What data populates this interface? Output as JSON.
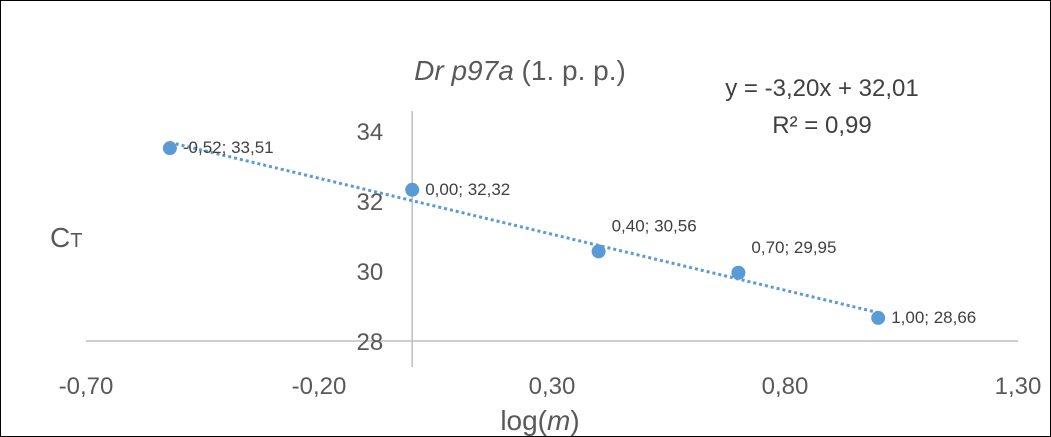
{
  "chart_data": {
    "type": "scatter",
    "title_italic": "Dr p97a",
    "title_rest": " (1. p. p.)",
    "xlabel_prefix": "log(",
    "xlabel_var": "m",
    "xlabel_suffix": ")",
    "ylabel_main": "C",
    "ylabel_sub": "T",
    "xlim": [
      -0.7,
      1.3
    ],
    "ylim": [
      28,
      34
    ],
    "xticks": [
      -0.7,
      -0.2,
      0.3,
      0.8,
      1.3
    ],
    "xtick_labels": [
      "-0,70",
      "-0,20",
      "0,30",
      "0,80",
      "1,30"
    ],
    "yticks": [
      28,
      30,
      32,
      34
    ],
    "ytick_labels": [
      "28",
      "30",
      "32",
      "34"
    ],
    "points": [
      {
        "x": -0.52,
        "y": 33.51,
        "label": "-0,52; 33,51"
      },
      {
        "x": 0.0,
        "y": 32.32,
        "label": "0,00; 32,32"
      },
      {
        "x": 0.4,
        "y": 30.56,
        "label": "0,40; 30,56"
      },
      {
        "x": 0.7,
        "y": 29.95,
        "label": "0,70; 29,95"
      },
      {
        "x": 1.0,
        "y": 28.66,
        "label": "1,00; 28,66"
      }
    ],
    "trendline": {
      "slope": -3.2,
      "intercept": 32.01,
      "style": "dotted"
    },
    "equation": "y = -3,20x + 32,01",
    "r_squared": "R² = 0,99",
    "grid": false,
    "colors": {
      "marker": "#5b9bd5",
      "trendline": "#5b9bd5",
      "axis": "#bfbfbf",
      "text": "#595959"
    }
  }
}
